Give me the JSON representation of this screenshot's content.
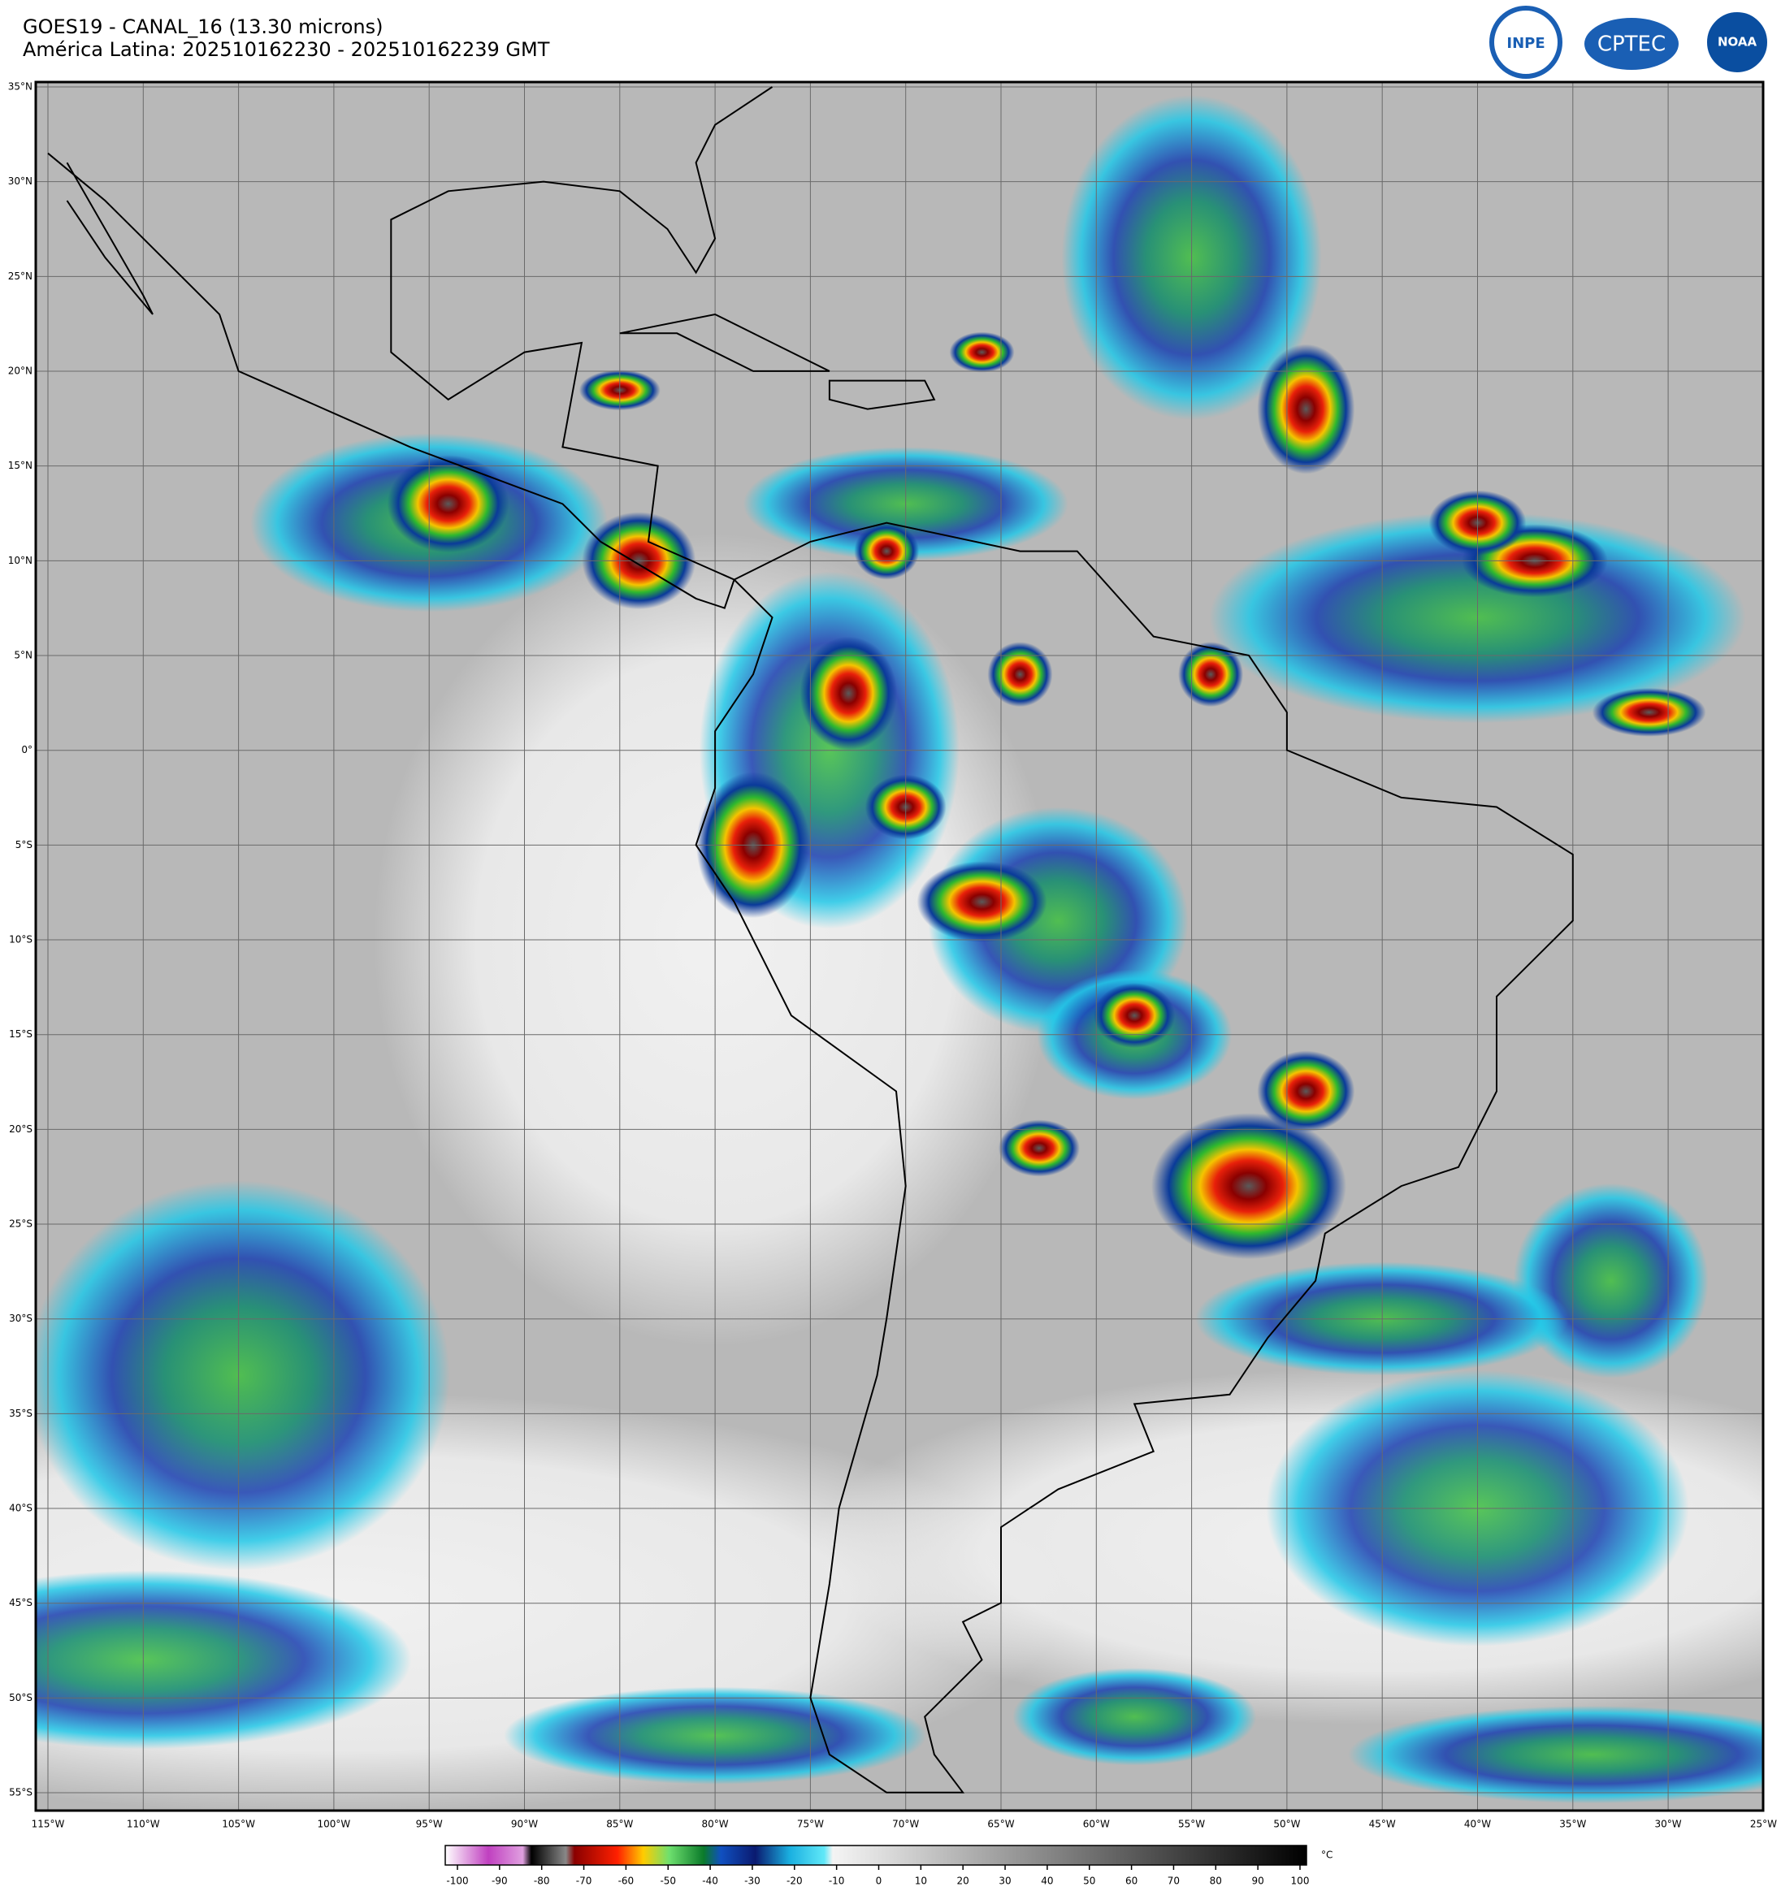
{
  "header": {
    "line1": "GOES19 - CANAL_16 (13.30 microns)",
    "line2": "América Latina: 202510162230 - 202510162239 GMT"
  },
  "logos": [
    "INPE",
    "CPTEC",
    "NOAA"
  ],
  "map": {
    "lat_labels": [
      "35°N",
      "30°N",
      "25°N",
      "20°N",
      "15°N",
      "10°N",
      "5°N",
      "0°",
      "5°S",
      "10°S",
      "15°S",
      "20°S",
      "25°S",
      "30°S",
      "35°S",
      "40°S",
      "45°S",
      "50°S",
      "55°S"
    ],
    "lon_labels": [
      "115°W",
      "110°W",
      "105°W",
      "100°W",
      "95°W",
      "90°W",
      "85°W",
      "80°W",
      "75°W",
      "70°W",
      "65°W",
      "60°W",
      "55°W",
      "50°W",
      "45°W",
      "40°W",
      "35°W",
      "30°W",
      "25°W"
    ]
  },
  "colorbar": {
    "ticks": [
      -100,
      -90,
      -80,
      -70,
      -60,
      -50,
      -40,
      -30,
      -20,
      -10,
      0,
      10,
      20,
      30,
      40,
      50,
      60,
      70,
      80,
      90,
      100
    ],
    "unit": "°C"
  }
}
